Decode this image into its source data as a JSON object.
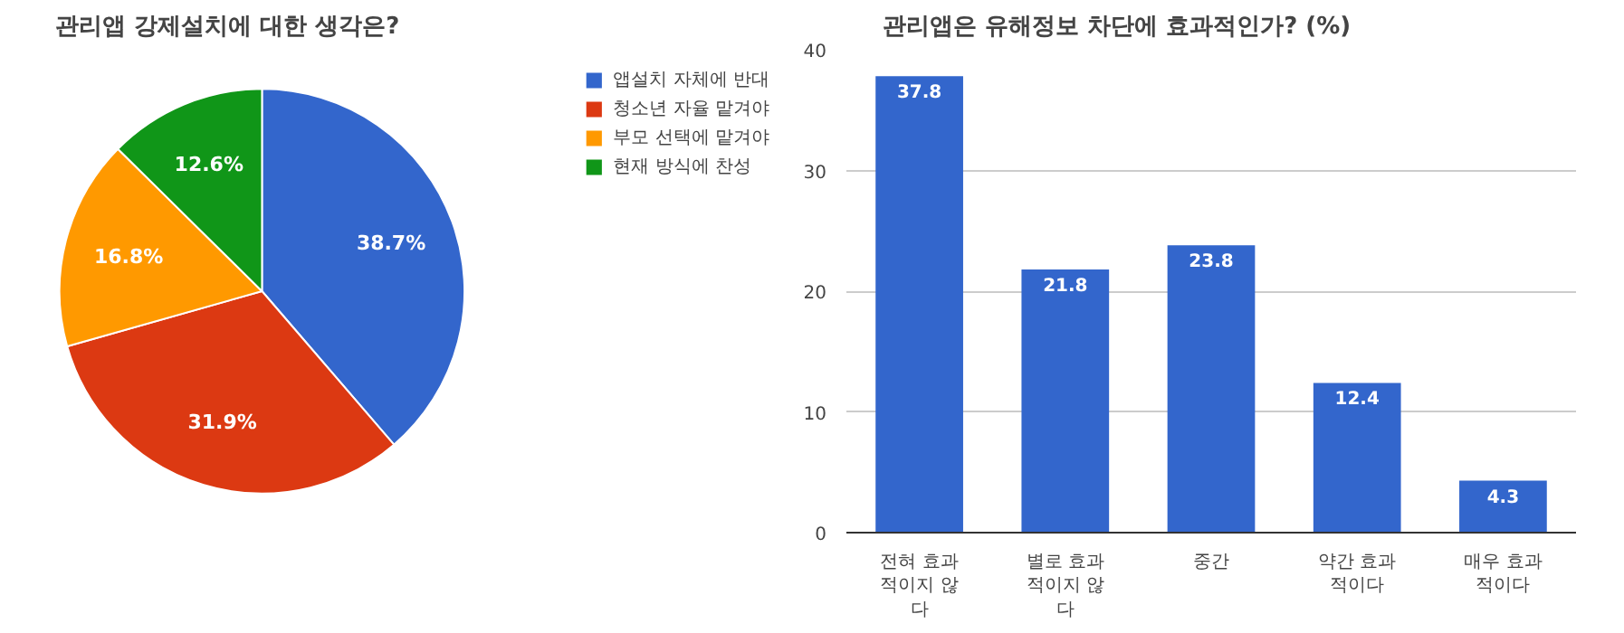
{
  "chart_data": [
    {
      "type": "pie",
      "title": "관리앱 강제설치에 대한 생각은?",
      "categories": [
        "앱설치 자체에 반대",
        "청소년 자율 맡겨야",
        "부모 선택에 맡겨야",
        "현재 방식에 찬성"
      ],
      "values": [
        38.7,
        31.9,
        16.8,
        12.6
      ],
      "colors": [
        "#3366cc",
        "#dc3912",
        "#ff9900",
        "#109618"
      ],
      "value_labels": [
        "38.7%",
        "31.9%",
        "16.8%",
        "12.6%"
      ],
      "legend": "right"
    },
    {
      "type": "bar",
      "title": "관리앱은 유해정보 차단에 효과적인가? (%)",
      "categories": [
        "전혀 효과적이지 않다",
        "별로 효과적이지 않다",
        "중간",
        "약간 효과적이다",
        "매우 효과적이다"
      ],
      "values": [
        37.8,
        21.8,
        23.8,
        12.4,
        4.3
      ],
      "color": "#3366cc",
      "ylim": [
        0,
        40
      ],
      "yticks": [
        0,
        10,
        20,
        30,
        40
      ],
      "grid": "y",
      "data_labels": true
    }
  ]
}
